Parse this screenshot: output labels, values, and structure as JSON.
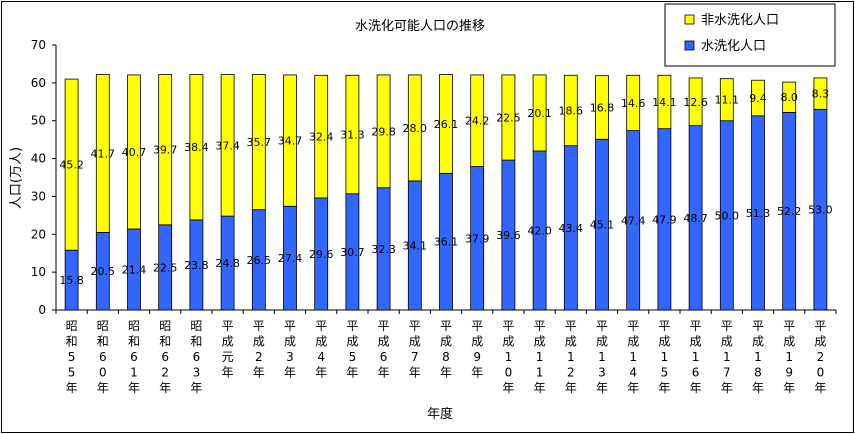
{
  "chart_data": {
    "type": "bar",
    "stacked": true,
    "title": "水洗化可能人口の推移",
    "xlabel": "年度",
    "ylabel": "人口(万人)",
    "ylim": [
      0,
      70
    ],
    "yticks": [
      "0",
      "10",
      "20",
      "30",
      "40",
      "50",
      "60",
      "70"
    ],
    "grid": false,
    "legend_position": "top-right",
    "categories": [
      "昭和55年",
      "昭和60年",
      "昭和61年",
      "昭和62年",
      "昭和63年",
      "平成元年",
      "平成2年",
      "平成3年",
      "平成4年",
      "平成5年",
      "平成6年",
      "平成7年",
      "平成8年",
      "平成9年",
      "平成10年",
      "平成11年",
      "平成12年",
      "平成13年",
      "平成14年",
      "平成15年",
      "平成16年",
      "平成17年",
      "平成18年",
      "平成19年",
      "平成20年"
    ],
    "series": [
      {
        "name": "水洗化人口",
        "color": "#3366ff",
        "values": [
          15.8,
          20.5,
          21.4,
          22.5,
          23.8,
          24.8,
          26.5,
          27.4,
          29.6,
          30.7,
          32.3,
          34.1,
          36.1,
          37.9,
          39.6,
          42.0,
          43.4,
          45.1,
          47.4,
          47.9,
          48.7,
          50.0,
          51.3,
          52.2,
          53.0
        ],
        "labels": [
          "15.8",
          "20.5",
          "21.4",
          "22.5",
          "23.8",
          "24.8",
          "26.5",
          "27.4",
          "29.6",
          "30.7",
          "32.3",
          "34.1",
          "36.1",
          "37.9",
          "39.6",
          "42.0",
          "43.4",
          "45.1",
          "47.4",
          "47.9",
          "48.7",
          "50.0",
          "51.3",
          "52.2",
          "53.0"
        ]
      },
      {
        "name": "非水洗化人口",
        "color": "#ffff00",
        "values": [
          45.2,
          41.7,
          40.7,
          39.7,
          38.4,
          37.4,
          35.7,
          34.7,
          32.4,
          31.3,
          29.8,
          28.0,
          26.1,
          24.2,
          22.5,
          20.1,
          18.6,
          16.8,
          14.6,
          14.1,
          12.6,
          11.1,
          9.4,
          8.0,
          8.3
        ],
        "labels": [
          "45.2",
          "41.7",
          "40.7",
          "39.7",
          "38.4",
          "37.4",
          "35.7",
          "34.7",
          "32.4",
          "31.3",
          "29.8",
          "28.0",
          "26.1",
          "24.2",
          "22.5",
          "20.1",
          "18.6",
          "16.8",
          "14.6",
          "14.1",
          "12.6",
          "11.1",
          "9.4",
          "8.0",
          "8.3"
        ]
      }
    ]
  }
}
